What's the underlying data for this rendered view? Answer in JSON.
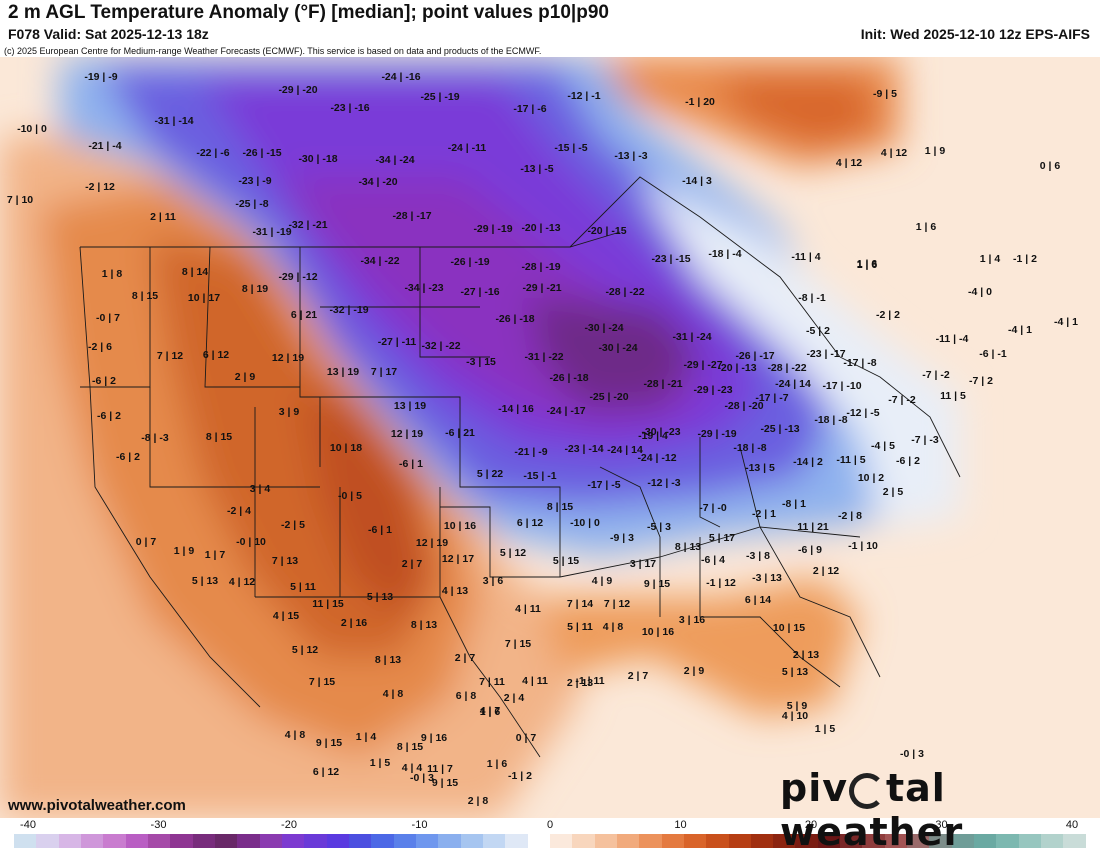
{
  "header": {
    "title": "2 m AGL Temperature Anomaly (°F) [median]; point values p10|p90",
    "valid": "F078 Valid: Sat 2025-12-13 18z",
    "init": "Init: Wed 2025-12-10 12z EPS-AIFS",
    "copyright": "(c) 2025 European Centre for Medium-range Weather Forecasts (ECMWF). This service is based on data and products of the ECMWF."
  },
  "footer": {
    "website": "www.pivotalweather.com",
    "brand_part1": "piv",
    "brand_part2": "tal weather"
  },
  "colorbar": {
    "ticks": [
      "-40",
      "-30",
      "-20",
      "-10",
      "0",
      "10",
      "20",
      "30",
      "40"
    ],
    "colors": [
      "#cfe0ef",
      "#d9d0ee",
      "#d7b6e6",
      "#cf97da",
      "#c97ccf",
      "#b95ec3",
      "#a54aa8",
      "#8e3592",
      "#782c7c",
      "#692868",
      "#7a2d8a",
      "#8a3bb0",
      "#7c3ad0",
      "#6a3ad8",
      "#5a3ae0",
      "#4c4fe0",
      "#4c68e6",
      "#5a80ea",
      "#6f97ee",
      "#8aafee",
      "#a6c5f0",
      "#c2d7f3",
      "#dfe8f6",
      "#ffffff",
      "#fbe9dc",
      "#f8d6bd",
      "#f5c19d",
      "#f1aa7c",
      "#ec925c",
      "#e47a40",
      "#d9642a",
      "#c9501c",
      "#b63e14",
      "#a12f10",
      "#8c2410",
      "#7a1c12",
      "#6b1616",
      "#7a2828",
      "#8f3d3d",
      "#a35454",
      "#9a6a6a",
      "#7d8d8a",
      "#6f9d98",
      "#6aa9a2",
      "#7cb8b0",
      "#97c6bf",
      "#b2d2cc",
      "#c9dcd8"
    ]
  },
  "map_labels": [
    {
      "t": "-19 | -9"
    },
    {
      "t": "-10 | 0"
    },
    {
      "t": "-21 | -4"
    },
    {
      "t": "-31 | -14"
    },
    {
      "t": "-2 | 12"
    },
    {
      "t": "7 | 10"
    },
    {
      "t": "-22 | -6"
    },
    {
      "t": "-26 | -15"
    },
    {
      "t": "-23 | -9"
    },
    {
      "t": "-29 | -20"
    },
    {
      "t": "-24 | -16"
    },
    {
      "t": "-25 | -19"
    },
    {
      "t": "-23 | -16"
    },
    {
      "t": "-30 | -18"
    },
    {
      "t": "-34 | -24"
    },
    {
      "t": "-34 | -20"
    },
    {
      "t": "-25 | -8"
    },
    {
      "t": "2 | 11"
    },
    {
      "t": "-31 | -19"
    },
    {
      "t": "-32 | -21"
    },
    {
      "t": "-28 | -17"
    },
    {
      "t": "-12 | -1"
    },
    {
      "t": "-17 | -6"
    },
    {
      "t": "-1 | 20"
    },
    {
      "t": "-24 | -11"
    },
    {
      "t": "-13 | -5"
    },
    {
      "t": "-15 | -5"
    },
    {
      "t": "-13 | -3"
    },
    {
      "t": "-14 | 3"
    },
    {
      "t": "-29 | -19"
    },
    {
      "t": "-20 | -13"
    },
    {
      "t": "-20 | -15"
    },
    {
      "t": "-9 | 5"
    },
    {
      "t": "4 | 12"
    },
    {
      "t": "4 | 12"
    },
    {
      "t": "1 | 9"
    },
    {
      "t": "0 | 6"
    },
    {
      "t": "1 | 6"
    },
    {
      "t": "1 | 6"
    },
    {
      "t": "1 | 8"
    },
    {
      "t": "8 | 14"
    },
    {
      "t": "8 | 19"
    },
    {
      "t": "-29 | -12"
    },
    {
      "t": "-34 | -22"
    },
    {
      "t": "-26 | -19"
    },
    {
      "t": "-28 | -19"
    },
    {
      "t": "-23 | -15"
    },
    {
      "t": "-18 | -4"
    },
    {
      "t": "-11 | 4"
    },
    {
      "t": "1 | 6"
    },
    {
      "t": "1 | 4"
    },
    {
      "t": "-1 | 2"
    },
    {
      "t": "8 | 15"
    },
    {
      "t": "10 | 17"
    },
    {
      "t": "-34 | -23"
    },
    {
      "t": "-27 | -16"
    },
    {
      "t": "-29 | -21"
    },
    {
      "t": "-28 | -22"
    },
    {
      "t": "-4 | 0"
    },
    {
      "t": "-0 | 7"
    },
    {
      "t": "6 | 21"
    },
    {
      "t": "-32 | -19"
    },
    {
      "t": "-26 | -18"
    },
    {
      "t": "-8 | -1"
    },
    {
      "t": "-5 | 2"
    },
    {
      "t": "-2 | 2"
    },
    {
      "t": "-4 | 1"
    },
    {
      "t": "-4 | 1"
    },
    {
      "t": "-2 | 6"
    },
    {
      "t": "7 | 12"
    },
    {
      "t": "6 | 12"
    },
    {
      "t": "12 | 19"
    },
    {
      "t": "-27 | -11"
    },
    {
      "t": "-32 | -22"
    },
    {
      "t": "-30 | -24"
    },
    {
      "t": "-30 | -24"
    },
    {
      "t": "-31 | -24"
    },
    {
      "t": "-26 | -17"
    },
    {
      "t": "-20 | -13"
    },
    {
      "t": "-23 | -17"
    },
    {
      "t": "-11 | -4"
    },
    {
      "t": "-6 | -1"
    },
    {
      "t": "-6 | 2"
    },
    {
      "t": "2 | 9"
    },
    {
      "t": "13 | 19"
    },
    {
      "t": "7 | 17"
    },
    {
      "t": "-3 | 15"
    },
    {
      "t": "-31 | -22"
    },
    {
      "t": "-26 | -18"
    },
    {
      "t": "-29 | -27"
    },
    {
      "t": "-28 | -22"
    },
    {
      "t": "-17 | -8"
    },
    {
      "t": "-7 | -2"
    },
    {
      "t": "-7 | 2"
    },
    {
      "t": "-6 | 2"
    },
    {
      "t": "3 | 9"
    },
    {
      "t": "13 | 19"
    },
    {
      "t": "-14 | 16"
    },
    {
      "t": "-24 | -17"
    },
    {
      "t": "-25 | -20"
    },
    {
      "t": "-28 | -21"
    },
    {
      "t": "-29 | -23"
    },
    {
      "t": "-28 | -20"
    },
    {
      "t": "-24 | 14"
    },
    {
      "t": "-17 | -7"
    },
    {
      "t": "-17 | -10"
    },
    {
      "t": "11 | 5"
    },
    {
      "t": "-8 | -3"
    },
    {
      "t": "8 | 15"
    },
    {
      "t": "12 | 19"
    },
    {
      "t": "-6 | 21"
    },
    {
      "t": "-19 | 4"
    },
    {
      "t": "-30 | -23"
    },
    {
      "t": "-29 | -19"
    },
    {
      "t": "-25 | -13"
    },
    {
      "t": "-18 | -8"
    },
    {
      "t": "-12 | -5"
    },
    {
      "t": "-7 | -2"
    },
    {
      "t": "-7 | -3"
    },
    {
      "t": "-6 | 2"
    },
    {
      "t": "10 | 18"
    },
    {
      "t": "-21 | -9"
    },
    {
      "t": "-23 | -14"
    },
    {
      "t": "-24 | 14"
    },
    {
      "t": "-24 | -12"
    },
    {
      "t": "-18 | -8"
    },
    {
      "t": "-4 | 5"
    },
    {
      "t": "-6 | 2"
    },
    {
      "t": "-6 | 1"
    },
    {
      "t": "5 | 22"
    },
    {
      "t": "-15 | -1"
    },
    {
      "t": "-17 | -5"
    },
    {
      "t": "-12 | -3"
    },
    {
      "t": "-13 | 5"
    },
    {
      "t": "-14 | 2"
    },
    {
      "t": "-11 | 5"
    },
    {
      "t": "10 | 2"
    },
    {
      "t": "3 | 4"
    },
    {
      "t": "-0 | 5"
    },
    {
      "t": "8 | 15"
    },
    {
      "t": "6 | 12"
    },
    {
      "t": "-10 | 0"
    },
    {
      "t": "-9 | 3"
    },
    {
      "t": "-5 | 3"
    },
    {
      "t": "-7 | -0"
    },
    {
      "t": "-2 | 1"
    },
    {
      "t": "-8 | 1"
    },
    {
      "t": "-2 | 8"
    },
    {
      "t": "2 | 5"
    },
    {
      "t": "0 | 7"
    },
    {
      "t": "-2 | 4"
    },
    {
      "t": "-2 | 5"
    },
    {
      "t": "-6 | 1"
    },
    {
      "t": "10 | 16"
    },
    {
      "t": "12 | 19"
    },
    {
      "t": "8 | 13"
    },
    {
      "t": "5 | 17"
    },
    {
      "t": "11 | 21"
    },
    {
      "t": "-1 | 10"
    },
    {
      "t": "-0 | 10"
    },
    {
      "t": "1 | 9"
    },
    {
      "t": "1 | 7"
    },
    {
      "t": "7 | 13"
    },
    {
      "t": "2 | 7"
    },
    {
      "t": "12 | 17"
    },
    {
      "t": "5 | 12"
    },
    {
      "t": "5 | 15"
    },
    {
      "t": "3 | 17"
    },
    {
      "t": "-6 | 4"
    },
    {
      "t": "-3 | 8"
    },
    {
      "t": "-6 | 9"
    },
    {
      "t": "2 | 12"
    },
    {
      "t": "5 | 13"
    },
    {
      "t": "4 | 12"
    },
    {
      "t": "5 | 11"
    },
    {
      "t": "3 | 6"
    },
    {
      "t": "4 | 9"
    },
    {
      "t": "9 | 15"
    },
    {
      "t": "-1 | 12"
    },
    {
      "t": "-3 | 13"
    },
    {
      "t": "11 | 15"
    },
    {
      "t": "5 | 13"
    },
    {
      "t": "4 | 13"
    },
    {
      "t": "7 | 14"
    },
    {
      "t": "7 | 12"
    },
    {
      "t": "6 | 14"
    },
    {
      "t": "4 | 15"
    },
    {
      "t": "2 | 16"
    },
    {
      "t": "4 | 11"
    },
    {
      "t": "5 | 12"
    },
    {
      "t": "10 | 15"
    },
    {
      "t": "-1 | 11"
    },
    {
      "t": "8 | 13"
    },
    {
      "t": "5 | 11"
    },
    {
      "t": "4 | 8"
    },
    {
      "t": "10 | 16"
    },
    {
      "t": "7 | 15"
    },
    {
      "t": "3 | 16"
    },
    {
      "t": "2 | 13"
    },
    {
      "t": "8 | 13"
    },
    {
      "t": "2 | 7"
    },
    {
      "t": "7 | 11"
    },
    {
      "t": "4 | 11"
    },
    {
      "t": "2 | 13"
    },
    {
      "t": "2 | 7"
    },
    {
      "t": "2 | 9"
    },
    {
      "t": "5 | 13"
    },
    {
      "t": "7 | 15"
    },
    {
      "t": "4 | 8"
    },
    {
      "t": "6 | 8"
    },
    {
      "t": "4 | 7"
    },
    {
      "t": "2 | 4"
    },
    {
      "t": "5 | 9"
    },
    {
      "t": "8 | 15"
    },
    {
      "t": "9 | 16"
    },
    {
      "t": "1 | 6"
    },
    {
      "t": "0 | 7"
    },
    {
      "t": "4 | 10"
    },
    {
      "t": "9 | 15"
    },
    {
      "t": "1 | 4"
    },
    {
      "t": "4 | 4"
    },
    {
      "t": "11 | 7"
    },
    {
      "t": "9 | 15"
    },
    {
      "t": "1 | 6"
    },
    {
      "t": "1 | 5"
    },
    {
      "t": "4 | 8"
    },
    {
      "t": "6 | 12"
    },
    {
      "t": "1 | 5"
    },
    {
      "t": "-1 | 2"
    },
    {
      "t": "-0 | 3"
    },
    {
      "t": "-0 | 3"
    },
    {
      "t": "2 | 8"
    }
  ]
}
